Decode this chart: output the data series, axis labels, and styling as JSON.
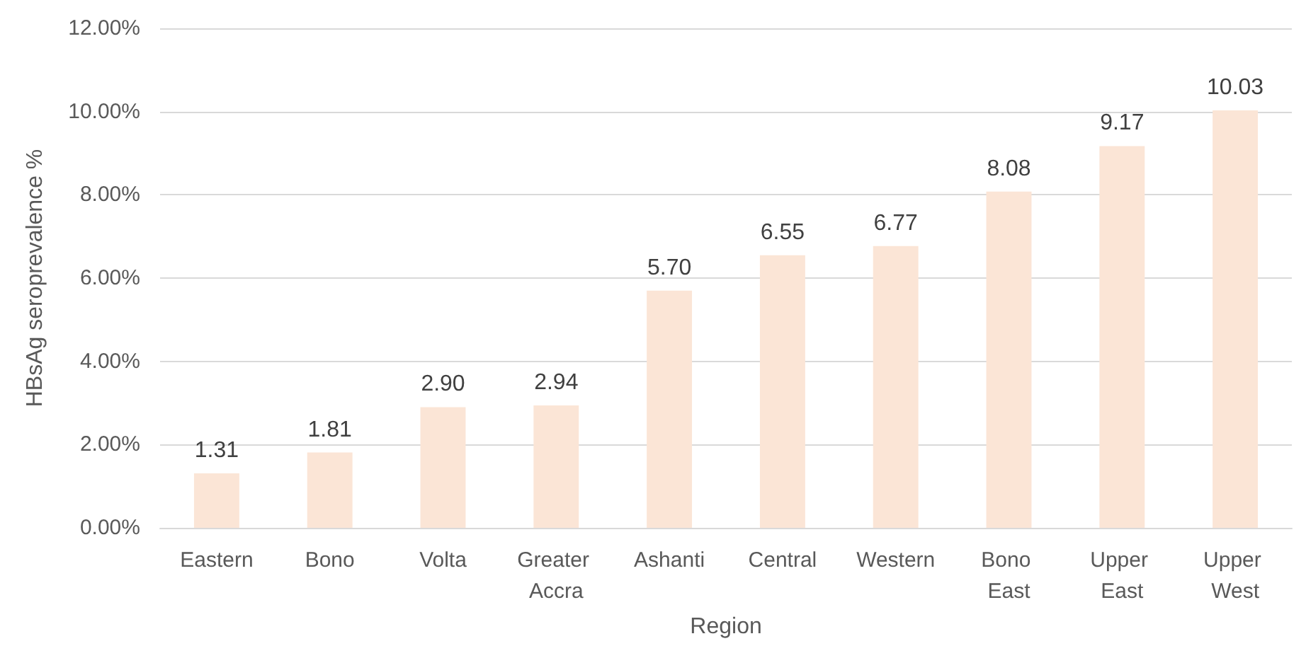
{
  "chart_data": {
    "type": "bar",
    "xlabel": "Region",
    "ylabel": "HBsAg seroprevalence %",
    "categories": [
      "Eastern",
      "Bono",
      "Volta",
      "Greater Accra",
      "Ashanti",
      "Central",
      "Western",
      "Bono East",
      "Upper East",
      "Upper West"
    ],
    "values": [
      1.31,
      1.81,
      2.9,
      2.94,
      5.7,
      6.55,
      6.77,
      8.08,
      9.17,
      10.03
    ],
    "value_labels": [
      "1.31",
      "1.81",
      "2.90",
      "2.94",
      "5.70",
      "6.55",
      "6.77",
      "8.08",
      "9.17",
      "10.03"
    ],
    "color": "#fbe5d6",
    "ylim": [
      0,
      12
    ],
    "yticks": [
      {
        "value": 0,
        "label": "0.00%"
      },
      {
        "value": 2,
        "label": "2.00%"
      },
      {
        "value": 4,
        "label": "4.00%"
      },
      {
        "value": 6,
        "label": "6.00%"
      },
      {
        "value": 8,
        "label": "8.00%"
      },
      {
        "value": 10,
        "label": "10.00%"
      },
      {
        "value": 12,
        "label": "12.00%"
      }
    ],
    "grid": "y"
  }
}
